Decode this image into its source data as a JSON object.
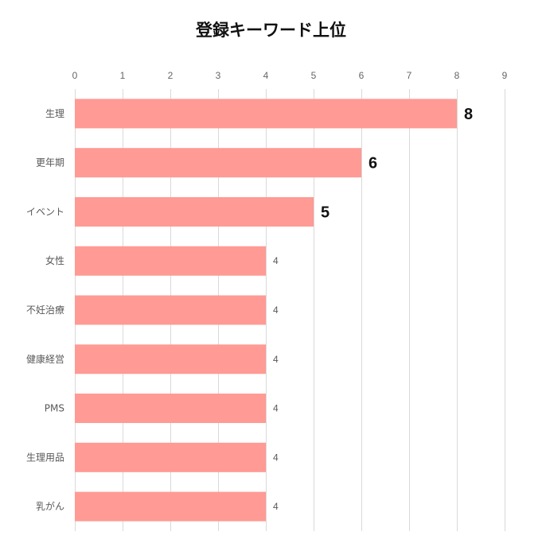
{
  "chart_data": {
    "type": "bar",
    "orientation": "horizontal",
    "title": "登録キーワード上位",
    "categories": [
      "生理",
      "更年期",
      "イベント",
      "女性",
      "不妊治療",
      "健康経営",
      "PMS",
      "生理用品",
      "乳がん"
    ],
    "values": [
      8,
      6,
      5,
      4,
      4,
      4,
      4,
      4,
      4
    ],
    "xlim": [
      0,
      9
    ],
    "xticks": [
      0,
      1,
      2,
      3,
      4,
      5,
      6,
      7,
      8,
      9
    ],
    "grid": true,
    "legend": "none",
    "bar_color": "#ff9a94",
    "highlight_threshold": 5
  }
}
